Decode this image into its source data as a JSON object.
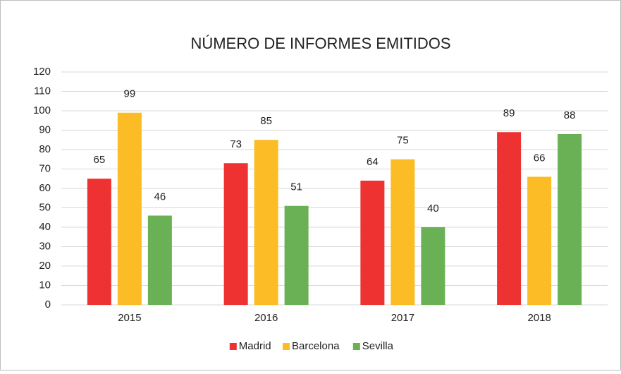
{
  "chart_data": {
    "type": "bar",
    "title": "NÚMERO DE INFORMES EMITIDOS",
    "categories": [
      "2015",
      "2016",
      "2017",
      "2018"
    ],
    "series": [
      {
        "name": "Madrid",
        "color": "#ee3131",
        "values": [
          65,
          73,
          64,
          89
        ]
      },
      {
        "name": "Barcelona",
        "color": "#fbbc25",
        "values": [
          99,
          85,
          75,
          66
        ]
      },
      {
        "name": "Sevilla",
        "color": "#6ab155",
        "values": [
          46,
          51,
          40,
          88
        ]
      }
    ],
    "ylim": [
      0,
      120
    ],
    "yticks": [
      0,
      10,
      20,
      30,
      40,
      50,
      60,
      70,
      80,
      90,
      100,
      110,
      120
    ],
    "grid": true,
    "legend": "bottom"
  }
}
